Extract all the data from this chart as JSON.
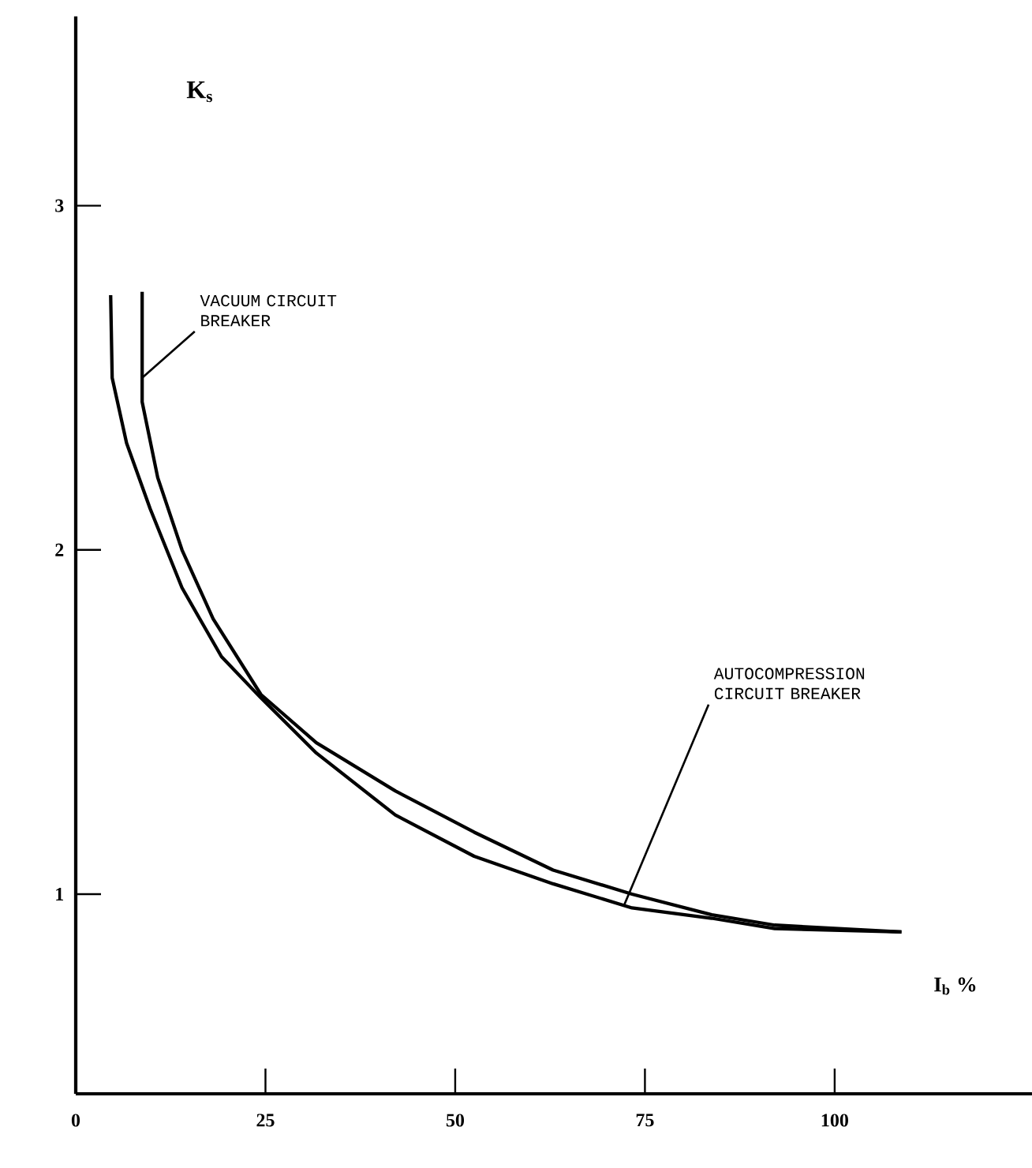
{
  "chart_data": {
    "type": "line",
    "xlabel": "I$_{b}$ %",
    "ylabel": "K$_{s}$",
    "xlim": [
      0,
      126
    ],
    "ylim": [
      0.42,
      3.55
    ],
    "xticks": [
      0,
      25,
      50,
      75,
      100
    ],
    "yticks": [
      1,
      2,
      3
    ],
    "series": [
      {
        "color": "#000000",
        "x": [
          4.6,
          4.8,
          6.7,
          9.8,
          14.0,
          19.2,
          24.4,
          31.7,
          42.1,
          52.5,
          62.9,
          73.3,
          83.8,
          92.1,
          108.8
        ],
        "values": [
          2.74,
          2.5,
          2.31,
          2.12,
          1.89,
          1.69,
          1.57,
          1.41,
          1.23,
          1.11,
          1.03,
          0.96,
          0.93,
          0.9,
          0.89
        ]
      },
      {
        "color": "#000000",
        "x": [
          8.75,
          8.75,
          10.8,
          14.0,
          18.1,
          24.4,
          31.7,
          42.1,
          52.5,
          62.9,
          73.3,
          83.8,
          92.1,
          108.8
        ],
        "values": [
          2.75,
          2.43,
          2.21,
          2.0,
          1.8,
          1.58,
          1.44,
          1.3,
          1.18,
          1.07,
          1.0,
          0.94,
          0.91,
          0.89
        ]
      }
    ],
    "annotations": [
      {
        "text": "VACUUM CIRCUIT BREAKER",
        "x": 8.75,
        "y": 2.5
      },
      {
        "text": "AUTOCOMPRESSION CIRCUIT BREAKER",
        "x": 72.3,
        "y": 0.97
      }
    ],
    "line_style": "solid",
    "marker": "none"
  }
}
